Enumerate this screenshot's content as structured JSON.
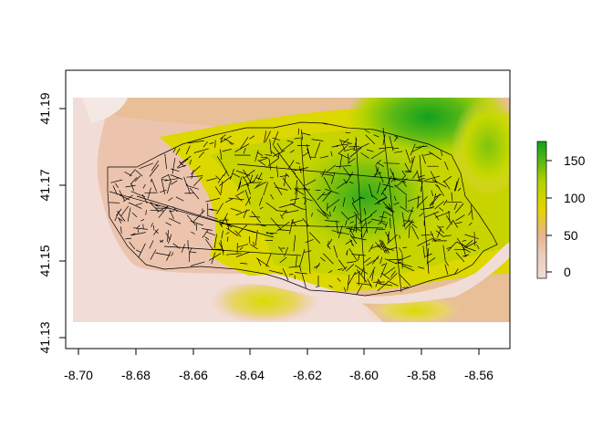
{
  "map": {
    "x_ticks": [
      "-8.70",
      "-8.68",
      "-8.66",
      "-8.64",
      "-8.62",
      "-8.60",
      "-8.58",
      "-8.56"
    ],
    "y_ticks": [
      "41.13",
      "41.15",
      "41.17",
      "41.19"
    ],
    "legend_ticks": [
      "0",
      "50",
      "100",
      "150"
    ],
    "legend_position": "right",
    "colors": {
      "low": "#f2dcd8",
      "mid_low": "#ebb89c",
      "mid": "#e6dc00",
      "high": "#1fa81f",
      "roads": "#000000"
    }
  }
}
